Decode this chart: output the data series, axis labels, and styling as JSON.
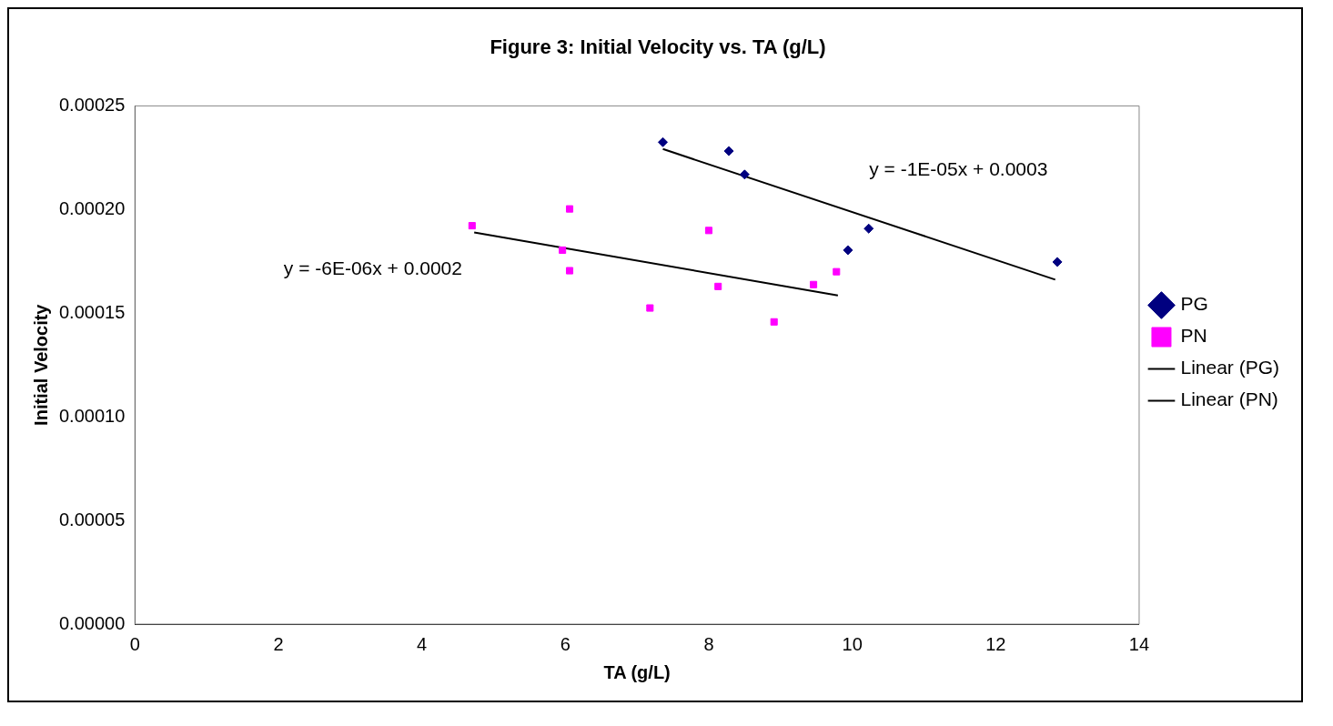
{
  "chart_data": {
    "type": "scatter",
    "title": "Figure 3: Initial Velocity vs. TA (g/L)",
    "xlabel": "TA (g/L)",
    "ylabel": "Initial Velocity",
    "xlim": [
      0,
      14
    ],
    "xticks": [
      0,
      2,
      4,
      6,
      8,
      10,
      12,
      14
    ],
    "ylim": [
      0,
      0.00025
    ],
    "yticks": [
      {
        "value": 0,
        "label": "0.00000"
      },
      {
        "value": 5e-05,
        "label": "0.00005"
      },
      {
        "value": 0.0001,
        "label": "0.00010"
      },
      {
        "value": 0.00015,
        "label": "0.00015"
      },
      {
        "value": 0.0002,
        "label": "0.00020"
      },
      {
        "value": 0.00025,
        "label": "0.00025"
      }
    ],
    "grid": false,
    "legend": "right",
    "series": [
      {
        "name": "PG",
        "type": "scatter",
        "marker": "diamond",
        "color": "#000080",
        "x": [
          7.36,
          8.28,
          8.5,
          9.94,
          10.23,
          12.86
        ],
        "values": [
          0.0002325,
          0.0002282,
          0.0002169,
          0.0001804,
          0.0001908,
          0.0001747
        ]
      },
      {
        "name": "PN",
        "type": "scatter",
        "marker": "square",
        "color": "#ff00ff",
        "x": [
          4.7,
          5.96,
          6.06,
          6.06,
          7.18,
          8.0,
          8.13,
          8.91,
          9.46,
          9.78
        ],
        "values": [
          0.0001922,
          0.0001804,
          0.0002003,
          0.0001705,
          0.0001525,
          0.0001899,
          0.0001629,
          0.0001458,
          0.0001638,
          0.00017
        ]
      },
      {
        "name": "Linear (PG)",
        "type": "line",
        "marker": "none",
        "color": "#000000",
        "x": [
          7.36,
          12.83
        ],
        "values": [
          0.0002292,
          0.0001662
        ]
      },
      {
        "name": "Linear (PN)",
        "type": "line",
        "marker": "none",
        "color": "#000000",
        "x": [
          4.73,
          9.8
        ],
        "values": [
          0.0001889,
          0.0001586
        ]
      }
    ],
    "annotations": [
      "y = -1E-05x + 0.0003",
      "y = -6E-06x + 0.0002"
    ]
  }
}
